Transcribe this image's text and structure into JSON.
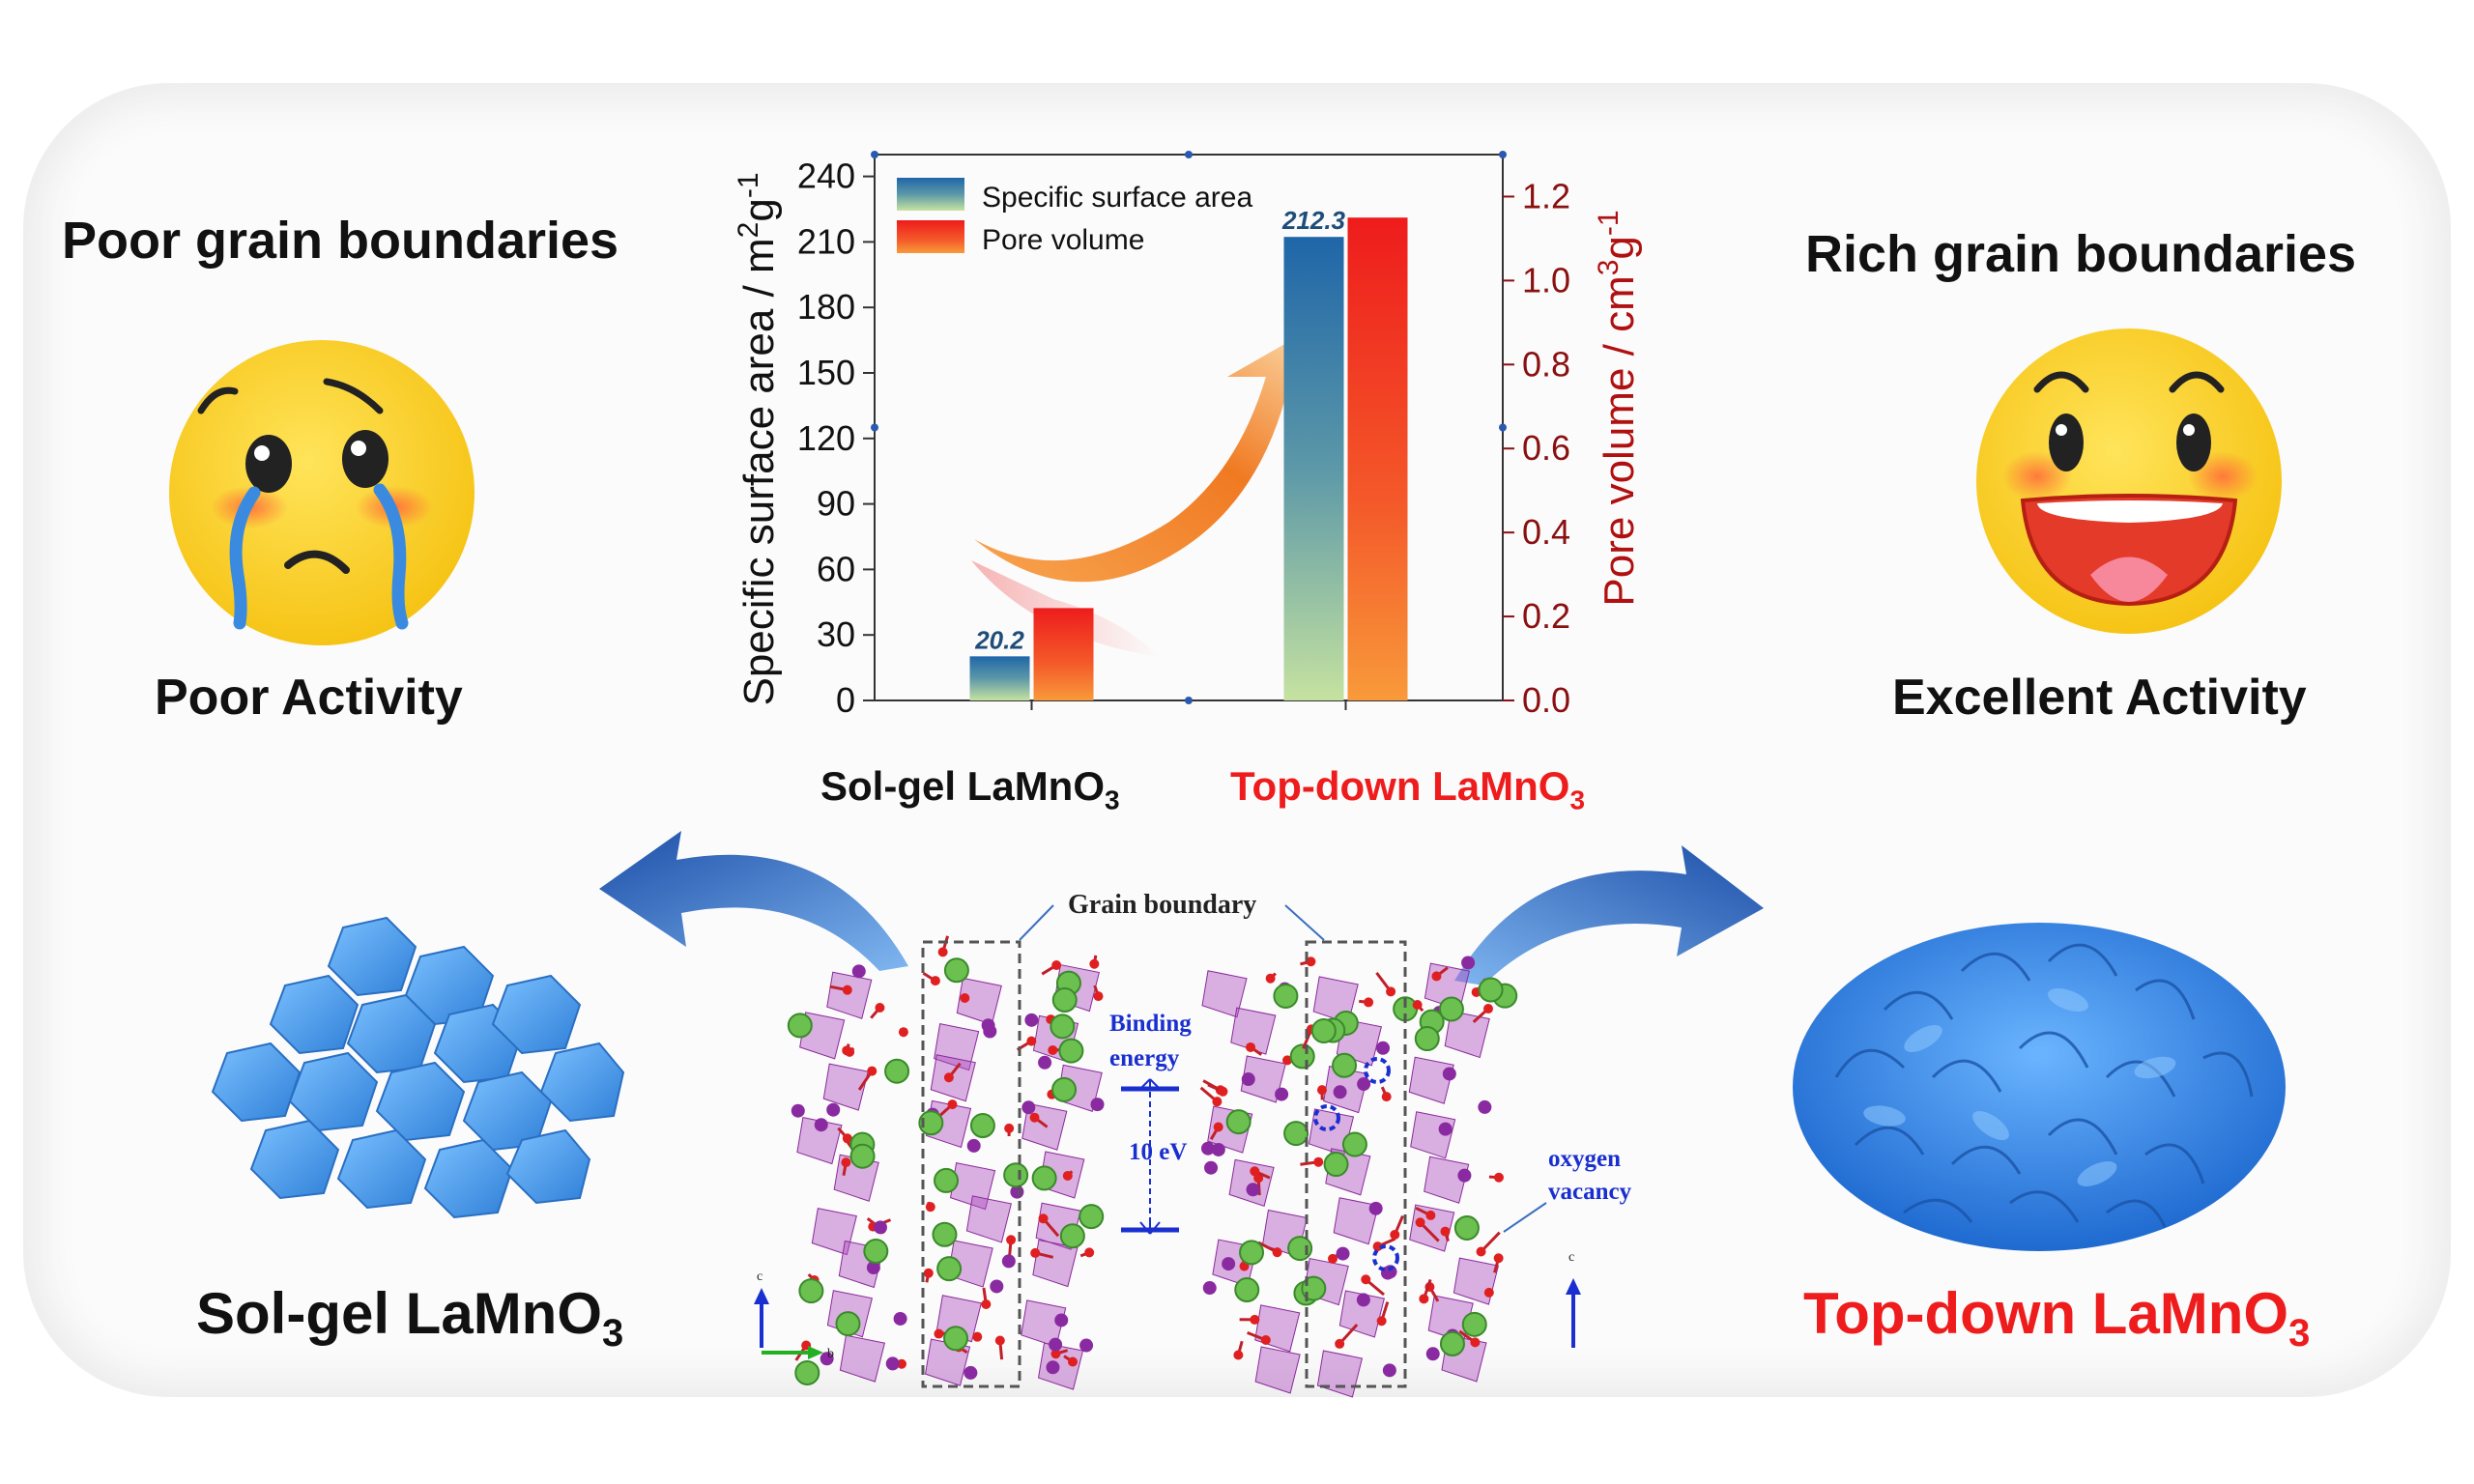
{
  "left": {
    "heading": "Poor grain boundaries",
    "activity": "Poor Activity",
    "material": "Sol-gel LaMnO",
    "material_sub": "3"
  },
  "right": {
    "heading": "Rich grain boundaries",
    "activity": "Excellent Activity",
    "material": "Top-down LaMnO",
    "material_sub": "3"
  },
  "structure": {
    "grain_boundary_label": "Grain  boundary",
    "binding_energy_label_1": "Binding",
    "binding_energy_label_2": "energy",
    "energy_value": "10 eV",
    "oxygen_label_1": "oxygen",
    "oxygen_label_2": "vacancy",
    "axis_c": "c",
    "axis_b": "b"
  },
  "chart_data": {
    "type": "bar",
    "categories": [
      "Sol-gel LaMnO3",
      "Top-down LaMnO3"
    ],
    "category_labels": [
      {
        "main": "Sol-gel LaMnO",
        "sub": "3"
      },
      {
        "main": "Top-down LaMnO",
        "sub": "3"
      }
    ],
    "series": [
      {
        "name": "Specific surface area",
        "axis": "left",
        "values": [
          20.2,
          212.3
        ],
        "value_labels": [
          "20.2",
          "212.3"
        ]
      },
      {
        "name": "Pore volume",
        "axis": "right",
        "values": [
          0.22,
          1.15
        ]
      }
    ],
    "ylabel_left": "Specific surface area / m",
    "ylabel_left_unit_tail": "g",
    "ylabel_right": "Pore volume / cm",
    "ylabel_right_unit_tail": "g",
    "sup_2": "2",
    "sup_3": "3",
    "sup_neg1": "-1",
    "ylim_left": [
      0,
      250
    ],
    "ylim_right": [
      0,
      1.3
    ],
    "yticks_left": [
      "0",
      "30",
      "60",
      "90",
      "120",
      "150",
      "180",
      "210",
      "240"
    ],
    "yticks_right": [
      "0.0",
      "0.2",
      "0.4",
      "0.6",
      "0.8",
      "1.0",
      "1.2"
    ],
    "legend_position": "top-left"
  },
  "colors": {
    "accent_red": "#ee1c1c",
    "crystal_blue": "#4a9de8",
    "axis_red": "#b01010"
  }
}
